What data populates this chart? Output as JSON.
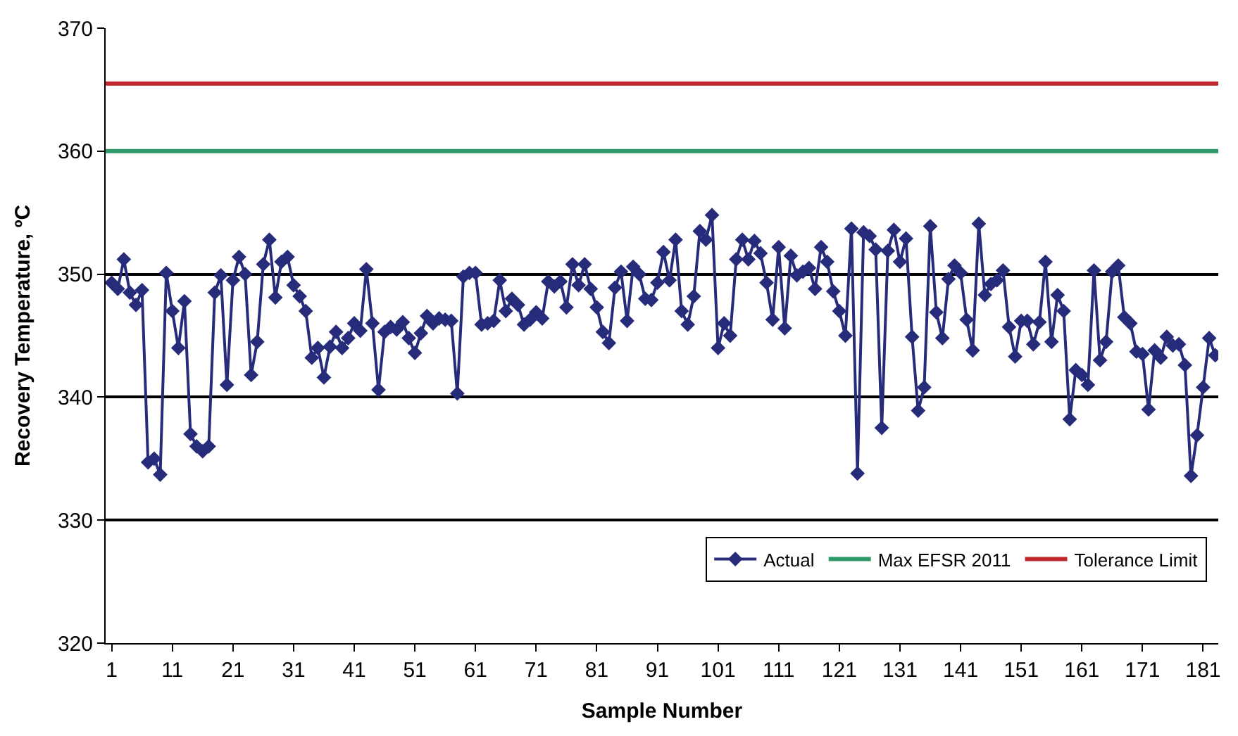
{
  "chart_data": {
    "type": "line",
    "xlabel": "Sample Number",
    "ylabel": "Recovery Temperature, ºC",
    "x": [
      1,
      2,
      3,
      4,
      5,
      6,
      7,
      8,
      9,
      10,
      11,
      12,
      13,
      14,
      15,
      16,
      17,
      18,
      19,
      20,
      21,
      22,
      23,
      24,
      25,
      26,
      27,
      28,
      29,
      30,
      31,
      32,
      33,
      34,
      35,
      36,
      37,
      38,
      39,
      40,
      41,
      42,
      43,
      44,
      45,
      46,
      47,
      48,
      49,
      50,
      51,
      52,
      53,
      54,
      55,
      56,
      57,
      58,
      59,
      60,
      61,
      62,
      63,
      64,
      65,
      66,
      67,
      68,
      69,
      70,
      71,
      72,
      73,
      74,
      75,
      76,
      77,
      78,
      79,
      80,
      81,
      82,
      83,
      84,
      85,
      86,
      87,
      88,
      89,
      90,
      91,
      92,
      93,
      94,
      95,
      96,
      97,
      98,
      99,
      100,
      101,
      102,
      103,
      104,
      105,
      106,
      107,
      108,
      109,
      110,
      111,
      112,
      113,
      114,
      115,
      116,
      117,
      118,
      119,
      120,
      121,
      122,
      123,
      124,
      125,
      126,
      127,
      128,
      129,
      130,
      131,
      132,
      133,
      134,
      135,
      136,
      137,
      138,
      139,
      140,
      141,
      142,
      143,
      144,
      145,
      146,
      147,
      148,
      149,
      150,
      151,
      152,
      153,
      154,
      155,
      156,
      157,
      158,
      159,
      160,
      161,
      162,
      163,
      164,
      165,
      166,
      167,
      168,
      169,
      170,
      171,
      172,
      173,
      174,
      175,
      176,
      177,
      178,
      179,
      180,
      181,
      182,
      183
    ],
    "series": [
      {
        "name": "Actual",
        "color": "#262b7a",
        "marker": "diamond",
        "values": [
          349.3,
          348.8,
          351.2,
          348.5,
          347.5,
          348.7,
          334.7,
          335,
          333.7,
          350.1,
          347,
          344,
          347.8,
          337,
          336,
          335.6,
          336,
          348.5,
          349.9,
          341,
          349.5,
          351.4,
          350,
          341.8,
          344.5,
          350.8,
          352.8,
          348.1,
          351,
          351.4,
          349.1,
          348.2,
          347,
          343.2,
          344,
          341.6,
          344.1,
          345.3,
          344,
          344.8,
          346,
          345.4,
          350.4,
          346,
          340.6,
          345.3,
          345.7,
          345.5,
          346.1,
          344.8,
          343.6,
          345.2,
          346.6,
          346,
          346.4,
          346.3,
          346.2,
          340.3,
          349.8,
          350.1,
          350.1,
          345.9,
          346,
          346.2,
          349.5,
          347,
          348,
          347.5,
          345.9,
          346.3,
          346.9,
          346.4,
          349.4,
          349,
          349.4,
          347.3,
          350.8,
          349.1,
          350.8,
          348.8,
          347.3,
          345.3,
          344.4,
          348.9,
          350.2,
          346.2,
          350.6,
          350,
          348,
          347.9,
          349.3,
          351.8,
          349.5,
          352.8,
          347,
          345.9,
          348.2,
          353.5,
          352.8,
          354.8,
          344,
          346,
          345,
          351.2,
          352.8,
          351.2,
          352.7,
          351.7,
          349.3,
          346.3,
          352.2,
          345.6,
          351.5,
          349.9,
          350.2,
          350.5,
          348.8,
          352.2,
          351,
          348.6,
          347,
          345,
          353.7,
          333.8,
          353.4,
          353.1,
          352,
          337.5,
          351.9,
          353.6,
          351,
          352.9,
          344.9,
          338.9,
          340.8,
          353.9,
          346.9,
          344.8,
          349.6,
          350.7,
          350.1,
          346.3,
          343.8,
          354.1,
          348.3,
          349.2,
          349.5,
          350.3,
          345.7,
          343.3,
          346.2,
          346.2,
          344.3,
          346.1,
          351,
          344.5,
          348.3,
          347,
          338.2,
          342.2,
          341.8,
          341,
          350.3,
          343,
          344.5,
          350.2,
          350.7,
          346.5,
          346,
          343.7,
          343.5,
          339,
          343.8,
          343.2,
          344.9,
          344.2,
          344.3,
          342.6,
          333.6,
          336.9,
          340.8,
          344.8,
          343.4
        ]
      }
    ],
    "ref_lines": [
      {
        "axis": "y",
        "value": 360,
        "label": "Max EFSR 2011",
        "color": "#2e9a6a"
      },
      {
        "axis": "y",
        "value": 365.5,
        "label": "Tolerance Limit",
        "color": "#c0282d"
      }
    ],
    "xlim": [
      0,
      183.5
    ],
    "xticks": [
      1,
      11,
      21,
      31,
      41,
      51,
      61,
      71,
      81,
      91,
      101,
      111,
      121,
      131,
      141,
      151,
      161,
      171,
      181
    ],
    "ylim": [
      320,
      370
    ],
    "yticks": [
      320,
      330,
      340,
      350,
      360,
      370
    ],
    "grid": "y",
    "legend": "bottom right",
    "line_style": "solid"
  }
}
